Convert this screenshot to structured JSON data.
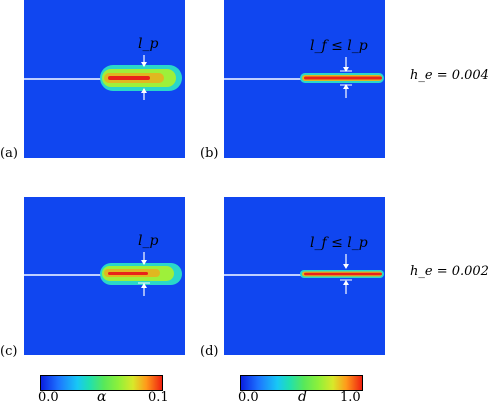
{
  "panels": [
    {
      "tag": "(a)",
      "annotation": "l_p"
    },
    {
      "tag": "(b)",
      "annotation": "l_f ≤ l_p"
    },
    {
      "tag": "(c)",
      "annotation": "l_p"
    },
    {
      "tag": "(d)",
      "annotation": "l_f ≤ l_p"
    }
  ],
  "row_labels": [
    "h_e = 0.004",
    "h_e = 0.002"
  ],
  "colorbars": [
    {
      "variable": "α",
      "min_label": "0.0",
      "max_label": "0.1"
    },
    {
      "variable": "d",
      "min_label": "0.0",
      "max_label": "1.0"
    }
  ],
  "colors": {
    "background_field": "#1046f0",
    "crack_line": "#bfcfff",
    "plume_outer": "#2ad7c9",
    "plume_mid": "#9ef03a",
    "plume_core": "#e8221a"
  }
}
